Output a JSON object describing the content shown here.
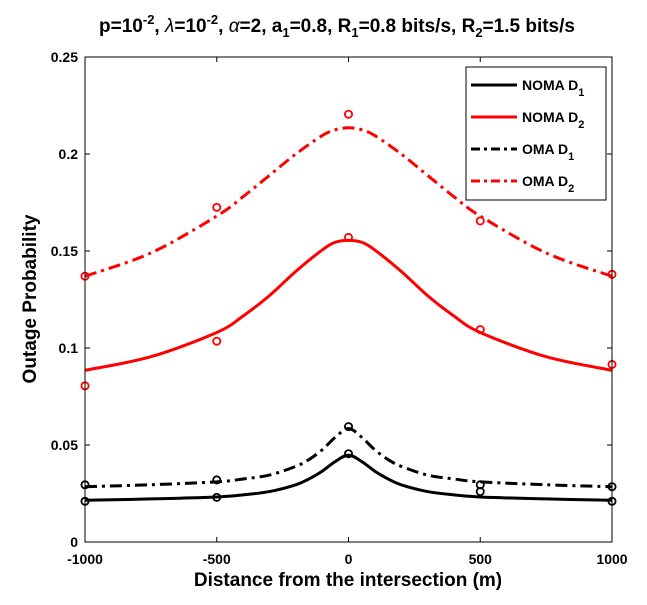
{
  "chart_data": {
    "type": "line",
    "title": "p=10^-2, λ=10^-2, α=2, a_1=0.8, R_1=0.8 bits/s, R_2=1.5 bits/s",
    "title_parts": [
      {
        "t": "p=10",
        "s": "n"
      },
      {
        "t": "-2",
        "s": "sup"
      },
      {
        "t": ", ",
        "s": "n"
      },
      {
        "t": "λ",
        "s": "it"
      },
      {
        "t": "=10",
        "s": "n"
      },
      {
        "t": "-2",
        "s": "sup"
      },
      {
        "t": ", ",
        "s": "n"
      },
      {
        "t": "α",
        "s": "it"
      },
      {
        "t": "=2, a",
        "s": "n"
      },
      {
        "t": "1",
        "s": "sub"
      },
      {
        "t": "=0.8, R",
        "s": "n"
      },
      {
        "t": "1",
        "s": "sub"
      },
      {
        "t": "=0.8 bits/s, R",
        "s": "n"
      },
      {
        "t": "2",
        "s": "sub"
      },
      {
        "t": "=1.5 bits/s",
        "s": "n"
      }
    ],
    "xlabel": "Distance from the intersection (m)",
    "ylabel": "Outage Probability",
    "xlim": [
      -1000,
      1000
    ],
    "ylim": [
      0,
      0.25
    ],
    "xticks": [
      -1000,
      -500,
      0,
      500,
      1000
    ],
    "yticks": [
      0,
      0.05,
      0.1,
      0.15,
      0.2,
      0.25
    ],
    "grid": false,
    "legend_position": "top-right",
    "series": [
      {
        "name": "NOMA D_1",
        "label_main": "NOMA D",
        "label_sub": "1",
        "color": "#000000",
        "dash": "solid",
        "curve_x": [
          -1000,
          -750,
          -500,
          -400,
          -300,
          -200,
          -150,
          -100,
          -50,
          0,
          50,
          100,
          150,
          200,
          300,
          400,
          500,
          750,
          1000
        ],
        "curve_y": [
          0.0215,
          0.0222,
          0.0232,
          0.0243,
          0.026,
          0.0295,
          0.0325,
          0.0365,
          0.0415,
          0.0448,
          0.0415,
          0.0365,
          0.0325,
          0.0295,
          0.026,
          0.0243,
          0.0232,
          0.0222,
          0.0215
        ],
        "markers_x": [
          -1000,
          -500,
          0,
          500,
          1000
        ],
        "markers_y": [
          0.021,
          0.023,
          0.0455,
          0.026,
          0.021
        ]
      },
      {
        "name": "NOMA D_2",
        "label_main": "NOMA D",
        "label_sub": "2",
        "color": "#ff0000",
        "dash": "solid",
        "curve_x": [
          -1000,
          -750,
          -500,
          -400,
          -300,
          -200,
          -100,
          -50,
          0,
          50,
          100,
          200,
          300,
          400,
          500,
          750,
          1000
        ],
        "curve_y": [
          0.0885,
          0.0955,
          0.108,
          0.1165,
          0.127,
          0.1395,
          0.1505,
          0.1545,
          0.1555,
          0.1545,
          0.1505,
          0.1395,
          0.127,
          0.1165,
          0.108,
          0.0955,
          0.0885
        ],
        "markers_x": [
          -1000,
          -500,
          0,
          500,
          1000
        ],
        "markers_y": [
          0.0805,
          0.1035,
          0.157,
          0.1095,
          0.0915
        ]
      },
      {
        "name": "OMA D_1",
        "label_main": "OMA D",
        "label_sub": "1",
        "color": "#000000",
        "dash": "dashdot",
        "curve_x": [
          -1000,
          -750,
          -500,
          -400,
          -300,
          -200,
          -150,
          -100,
          -50,
          0,
          50,
          100,
          150,
          200,
          300,
          400,
          500,
          750,
          1000
        ],
        "curve_y": [
          0.0285,
          0.0295,
          0.031,
          0.0325,
          0.0345,
          0.039,
          0.0425,
          0.0475,
          0.054,
          0.0585,
          0.054,
          0.0475,
          0.0425,
          0.039,
          0.0345,
          0.0325,
          0.031,
          0.0295,
          0.0285
        ],
        "markers_x": [
          -1000,
          -500,
          0,
          500,
          1000
        ],
        "markers_y": [
          0.0295,
          0.032,
          0.0595,
          0.0295,
          0.0285
        ]
      },
      {
        "name": "OMA D_2",
        "label_main": "OMA D",
        "label_sub": "2",
        "color": "#ff0000",
        "dash": "dashdot",
        "curve_x": [
          -1000,
          -750,
          -500,
          -400,
          -300,
          -200,
          -100,
          -50,
          0,
          50,
          100,
          200,
          300,
          400,
          500,
          750,
          1000
        ],
        "curve_y": [
          0.137,
          0.149,
          0.168,
          0.178,
          0.189,
          0.2,
          0.2095,
          0.2125,
          0.2135,
          0.2125,
          0.2095,
          0.2,
          0.189,
          0.178,
          0.168,
          0.149,
          0.137
        ],
        "markers_x": [
          -1000,
          -500,
          0,
          500,
          1000
        ],
        "markers_y": [
          0.137,
          0.1725,
          0.2205,
          0.1655,
          0.138
        ]
      }
    ]
  }
}
